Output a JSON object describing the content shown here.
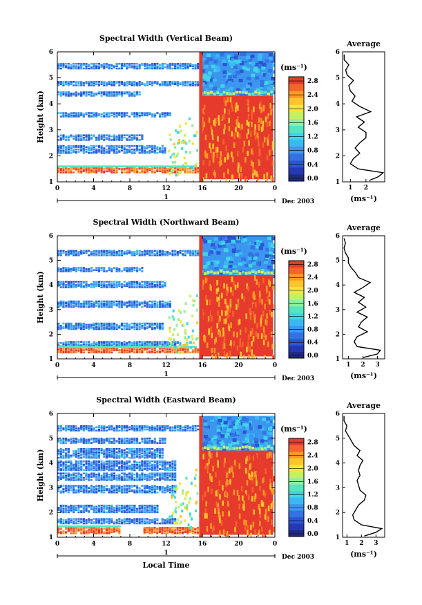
{
  "chart_data": [
    {
      "type": "heatmap",
      "title": "Spectral Width (Vertical Beam)",
      "ylabel": "Height (km)",
      "x_ticks": [
        "0",
        "4",
        "8",
        "12",
        "16",
        "20",
        "0"
      ],
      "xlim": [
        0,
        24
      ],
      "y_ticks": [
        "1",
        "2",
        "3",
        "4",
        "5",
        "6"
      ],
      "ylim": [
        1,
        6
      ],
      "date_tick": "1",
      "date_label": "Dec 2003",
      "colorbar": {
        "unit": "(ms⁻¹)",
        "labels": [
          "0.0",
          "0.4",
          "0.8",
          "1.2",
          "1.6",
          "2.0",
          "2.4",
          "2.8"
        ],
        "range": [
          0.0,
          3.0
        ]
      },
      "bands": [
        {
          "h": [
            1.35,
            1.55
          ],
          "t": [
            0,
            15.4
          ],
          "level": "high"
        },
        {
          "h": [
            2.1,
            2.4
          ],
          "t": [
            0,
            12.0
          ],
          "level": "low"
        },
        {
          "h": [
            2.6,
            2.8
          ],
          "t": [
            0,
            9.5
          ],
          "level": "low"
        },
        {
          "h": [
            3.5,
            3.65
          ],
          "t": [
            0,
            12.5
          ],
          "level": "low"
        },
        {
          "h": [
            4.3,
            4.45
          ],
          "t": [
            0,
            9.0
          ],
          "level": "low"
        },
        {
          "h": [
            4.7,
            4.85
          ],
          "t": [
            0,
            16.0
          ],
          "level": "low"
        },
        {
          "h": [
            5.35,
            5.55
          ],
          "t": [
            0,
            15.8
          ],
          "level": "low"
        }
      ],
      "post_sunrise": {
        "t_start": 15.8,
        "t_end": 23.8,
        "h_high_top": 4.3,
        "h_low_top": 6.0
      },
      "average": {
        "title": "Average",
        "xlabel": "(ms⁻¹)",
        "x_ticks": [
          "1",
          "2"
        ],
        "xlim": [
          0.5,
          3.2
        ],
        "y_ticks": [
          "1",
          "2",
          "3",
          "4",
          "5",
          "6"
        ],
        "profile": {
          "height": [
            1.05,
            1.2,
            1.35,
            1.5,
            1.7,
            1.9,
            2.1,
            2.3,
            2.5,
            2.7,
            2.9,
            3.1,
            3.3,
            3.5,
            3.7,
            3.9,
            4.1,
            4.3,
            4.5,
            4.7,
            4.9,
            5.1,
            5.3,
            5.5,
            5.7,
            5.9
          ],
          "value": [
            2.2,
            2.8,
            3.1,
            1.5,
            1.0,
            1.2,
            1.6,
            1.3,
            1.6,
            2.0,
            2.0,
            1.5,
            1.9,
            1.4,
            2.3,
            1.6,
            1.1,
            1.3,
            1.0,
            0.9,
            1.2,
            0.8,
            0.7,
            0.9,
            0.6,
            0.6
          ]
        }
      }
    },
    {
      "type": "heatmap",
      "title": "Spectral Width (Northward Beam)",
      "ylabel": "Height (km)",
      "x_ticks": [
        "0",
        "4",
        "8",
        "12",
        "16",
        "20",
        "0"
      ],
      "xlim": [
        0,
        24
      ],
      "y_ticks": [
        "1",
        "2",
        "3",
        "4",
        "5",
        "6"
      ],
      "ylim": [
        1,
        6
      ],
      "date_tick": "1",
      "date_label": "Dec 2003",
      "colorbar": {
        "unit": "(ms⁻¹)",
        "labels": [
          "0.0",
          "0.4",
          "0.8",
          "1.2",
          "1.6",
          "2.0",
          "2.4",
          "2.8"
        ],
        "range": [
          0.0,
          3.0
        ]
      },
      "bands": [
        {
          "h": [
            1.25,
            1.45
          ],
          "t": [
            0,
            15.5
          ],
          "level": "high"
        },
        {
          "h": [
            1.5,
            1.7
          ],
          "t": [
            0,
            13.5
          ],
          "level": "low"
        },
        {
          "h": [
            2.2,
            2.45
          ],
          "t": [
            0,
            11.5
          ],
          "level": "low"
        },
        {
          "h": [
            3.1,
            3.35
          ],
          "t": [
            0,
            12.5
          ],
          "level": "low"
        },
        {
          "h": [
            3.9,
            4.15
          ],
          "t": [
            0,
            12.0
          ],
          "level": "low"
        },
        {
          "h": [
            4.55,
            4.7
          ],
          "t": [
            0,
            9.5
          ],
          "level": "low"
        },
        {
          "h": [
            5.2,
            5.4
          ],
          "t": [
            0,
            16.0
          ],
          "level": "low"
        }
      ],
      "post_sunrise": {
        "t_start": 15.8,
        "t_end": 23.8,
        "h_high_top": 4.4,
        "h_low_top": 6.0
      },
      "average": {
        "title": "Average",
        "xlabel": "(ms⁻¹)",
        "x_ticks": [
          "1",
          "2",
          "3"
        ],
        "xlim": [
          0.6,
          3.5
        ],
        "y_ticks": [
          "1",
          "2",
          "3",
          "4",
          "5",
          "6"
        ],
        "profile": {
          "height": [
            1.05,
            1.2,
            1.35,
            1.5,
            1.7,
            1.9,
            2.1,
            2.3,
            2.5,
            2.7,
            2.9,
            3.1,
            3.3,
            3.5,
            3.7,
            3.9,
            4.1,
            4.3,
            4.5,
            4.7,
            4.9,
            5.1,
            5.3,
            5.5,
            5.7,
            5.9
          ],
          "value": [
            2.0,
            3.0,
            3.2,
            1.6,
            1.4,
            1.6,
            2.3,
            1.7,
            1.9,
            2.3,
            1.6,
            2.2,
            1.7,
            2.1,
            1.4,
            2.0,
            2.5,
            1.7,
            1.5,
            1.2,
            1.0,
            1.0,
            0.8,
            0.7,
            0.8,
            0.7
          ]
        }
      }
    },
    {
      "type": "heatmap",
      "title": "Spectral Width (Eastward Beam)",
      "ylabel": "Height (km)",
      "xlabel": "Local Time",
      "x_ticks": [
        "0",
        "4",
        "8",
        "12",
        "16",
        "20",
        "0"
      ],
      "xlim": [
        0,
        24
      ],
      "y_ticks": [
        "1",
        "2",
        "3",
        "4",
        "5",
        "6"
      ],
      "ylim": [
        1,
        6
      ],
      "date_tick": "1",
      "date_label": "Dec 2003",
      "colorbar": {
        "unit": "(ms⁻¹)",
        "labels": [
          "0.0",
          "0.4",
          "0.8",
          "1.2",
          "1.6",
          "2.0",
          "2.4",
          "2.8"
        ],
        "range": [
          0.0,
          3.0
        ]
      },
      "bands": [
        {
          "h": [
            1.15,
            1.4
          ],
          "t": [
            0,
            7.0
          ],
          "level": "high"
        },
        {
          "h": [
            1.15,
            1.4
          ],
          "t": [
            9.5,
            15.4
          ],
          "level": "high"
        },
        {
          "h": [
            1.55,
            1.75
          ],
          "t": [
            0,
            13.0
          ],
          "level": "low"
        },
        {
          "h": [
            2.0,
            2.3
          ],
          "t": [
            0,
            11.0
          ],
          "level": "low"
        },
        {
          "h": [
            2.8,
            3.1
          ],
          "t": [
            0,
            13.0
          ],
          "level": "low"
        },
        {
          "h": [
            3.3,
            3.6
          ],
          "t": [
            0,
            13.0
          ],
          "level": "low"
        },
        {
          "h": [
            3.7,
            4.1
          ],
          "t": [
            0,
            13.0
          ],
          "level": "low"
        },
        {
          "h": [
            4.2,
            4.6
          ],
          "t": [
            0,
            11.5
          ],
          "level": "low"
        },
        {
          "h": [
            4.8,
            5.0
          ],
          "t": [
            0,
            12.0
          ],
          "level": "low"
        },
        {
          "h": [
            5.3,
            5.5
          ],
          "t": [
            0,
            15.8
          ],
          "level": "low"
        }
      ],
      "post_sunrise": {
        "t_start": 15.8,
        "t_end": 23.8,
        "h_high_top": 4.5,
        "h_low_top": 5.9
      },
      "average": {
        "title": "Average",
        "xlabel": "(ms⁻¹)",
        "x_ticks": [
          "1",
          "2",
          "3"
        ],
        "xlim": [
          0.7,
          3.6
        ],
        "y_ticks": [
          "1",
          "2",
          "3",
          "4",
          "5",
          "6"
        ],
        "profile": {
          "height": [
            1.05,
            1.2,
            1.35,
            1.5,
            1.7,
            1.9,
            2.1,
            2.3,
            2.5,
            2.7,
            2.9,
            3.1,
            3.3,
            3.5,
            3.7,
            3.9,
            4.1,
            4.3,
            4.5,
            4.7,
            4.9,
            5.1,
            5.3,
            5.5,
            5.7,
            5.9
          ],
          "value": [
            2.2,
            3.0,
            3.4,
            2.0,
            1.5,
            1.4,
            1.6,
            1.8,
            2.2,
            2.3,
            1.9,
            1.8,
            1.7,
            1.9,
            1.8,
            1.9,
            2.1,
            1.7,
            1.9,
            1.5,
            1.3,
            1.1,
            0.9,
            1.0,
            0.8,
            0.8
          ]
        }
      }
    }
  ]
}
